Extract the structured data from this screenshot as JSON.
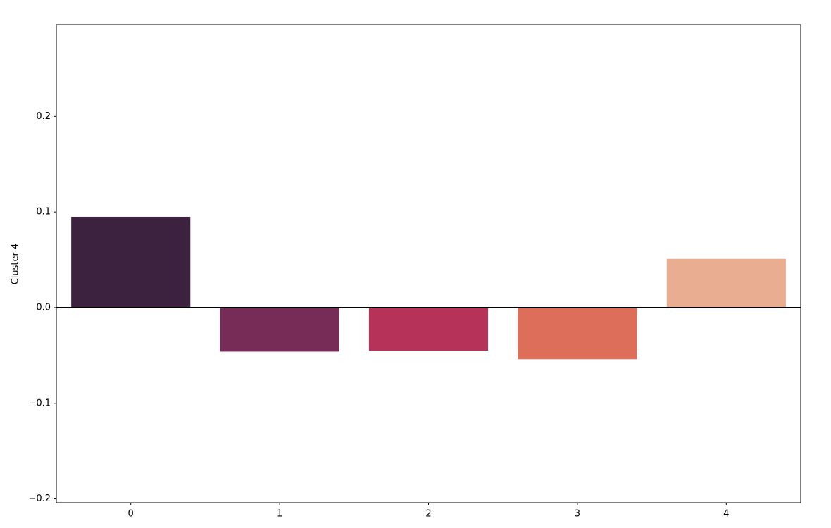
{
  "chart_data": {
    "type": "bar",
    "y_label": "Cluster 4",
    "categories": [
      "0",
      "1",
      "2",
      "3",
      "4"
    ],
    "values": [
      0.095,
      -0.046,
      -0.045,
      -0.054,
      0.051
    ],
    "colors": [
      "#3d2240",
      "#772c58",
      "#b73258",
      "#dd6e5a",
      "#e9ae91"
    ],
    "ylim": [
      -0.204,
      0.296
    ],
    "yticks": [
      {
        "value": -0.2,
        "label": "−0.2"
      },
      {
        "value": -0.1,
        "label": "−0.1"
      },
      {
        "value": 0,
        "label": "0.0"
      },
      0.1,
      0.2
    ],
    "axhline": 0,
    "grid": false
  }
}
